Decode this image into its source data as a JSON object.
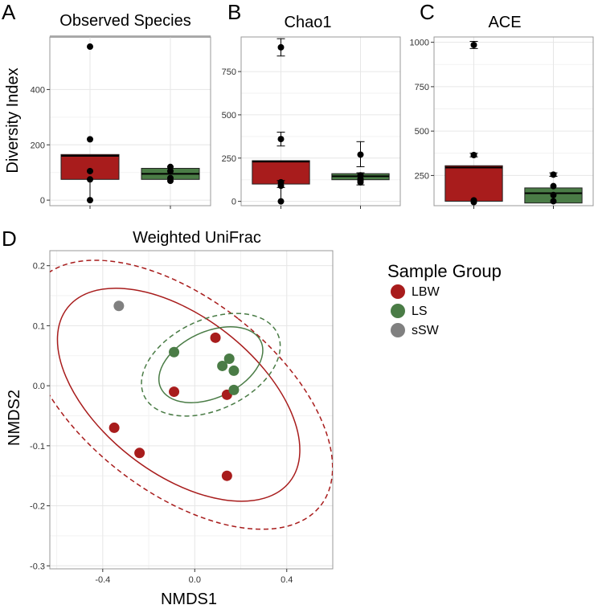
{
  "chart_data": [
    {
      "panel": "A",
      "type": "box",
      "title": "Observed Species",
      "ylabel": "Diversity Index",
      "ylim": [
        -20,
        590
      ],
      "yticks": [
        0,
        200,
        400
      ],
      "groups": [
        {
          "group": "LBW",
          "color": "#a81c1c",
          "q1": 75,
          "median": 160,
          "q3": 165,
          "whisker_low": 0,
          "whisker_high": 165,
          "points": [
            555,
            220,
            105,
            75,
            0
          ]
        },
        {
          "group": "LS",
          "color": "#4a7c46",
          "q1": 75,
          "median": 95,
          "q3": 115,
          "whisker_low": 70,
          "whisker_high": 120,
          "points": [
            120,
            105,
            80,
            70
          ]
        }
      ]
    },
    {
      "panel": "B",
      "type": "box",
      "title": "Chao1",
      "ylim": [
        -25,
        950
      ],
      "yticks": [
        0,
        250,
        500,
        750
      ],
      "groups": [
        {
          "group": "LBW",
          "color": "#a81c1c",
          "q1": 100,
          "median": 230,
          "q3": 235,
          "whisker_low": 0,
          "whisker_high": 235,
          "points": [
            890,
            360,
            110,
            90,
            0
          ],
          "error_bars": [
            {
              "center": 890,
              "low": 840,
              "high": 940
            },
            {
              "center": 360,
              "low": 320,
              "high": 400
            },
            {
              "center": 100,
              "low": 80,
              "high": 120
            }
          ]
        },
        {
          "group": "LS",
          "color": "#4a7c46",
          "q1": 125,
          "median": 145,
          "q3": 160,
          "whisker_low": 100,
          "whisker_high": 160,
          "points": [
            270,
            150,
            130,
            120,
            110
          ],
          "error_bars": [
            {
              "center": 270,
              "low": 200,
              "high": 345
            },
            {
              "center": 130,
              "low": 95,
              "high": 165
            }
          ]
        }
      ]
    },
    {
      "panel": "C",
      "type": "box",
      "title": "ACE",
      "ylim": [
        80,
        1030
      ],
      "yticks": [
        250,
        500,
        750,
        1000
      ],
      "groups": [
        {
          "group": "LBW",
          "color": "#a81c1c",
          "q1": 105,
          "median": 295,
          "q3": 305,
          "whisker_low": 100,
          "whisker_high": 305,
          "points": [
            985,
            365,
            110,
            100
          ],
          "error_bars": [
            {
              "center": 985,
              "low": 965,
              "high": 1005
            },
            {
              "center": 365,
              "low": 355,
              "high": 375
            }
          ]
        },
        {
          "group": "LS",
          "color": "#4a7c46",
          "q1": 95,
          "median": 150,
          "q3": 180,
          "whisker_low": 95,
          "whisker_high": 180,
          "points": [
            255,
            190,
            140,
            105
          ],
          "error_bars": [
            {
              "center": 255,
              "low": 245,
              "high": 265
            }
          ]
        }
      ]
    },
    {
      "panel": "D",
      "type": "scatter",
      "title": "Weighted UniFrac",
      "xlabel": "NMDS1",
      "ylabel": "NMDS2",
      "xlim": [
        -0.63,
        0.6
      ],
      "ylim": [
        -0.305,
        0.225
      ],
      "xticks": [
        -0.4,
        0.0,
        0.4
      ],
      "xtick_labels": [
        "-0.4",
        "0.0",
        "0.4"
      ],
      "yticks": [
        -0.3,
        -0.2,
        -0.1,
        0.0,
        0.1,
        0.2
      ],
      "ytick_labels": [
        "-0.3",
        "-0.2",
        "-0.1",
        "0.0",
        "0.1",
        "0.2"
      ],
      "legend_title": "Sample Group",
      "legend_position": "right",
      "series": [
        {
          "name": "LBW",
          "color": "#a81c1c",
          "points": [
            [
              0.09,
              0.08
            ],
            [
              -0.09,
              -0.01
            ],
            [
              0.14,
              -0.015
            ],
            [
              -0.35,
              -0.07
            ],
            [
              -0.24,
              -0.112
            ],
            [
              0.14,
              -0.15
            ]
          ],
          "ellipses": [
            {
              "style": "solid",
              "cx": -0.07,
              "cy": -0.015,
              "rx": 0.34,
              "ry": 0.235,
              "angle_deg": -52
            },
            {
              "style": "dashed",
              "cx": -0.07,
              "cy": -0.015,
              "rx": 0.42,
              "ry": 0.3,
              "angle_deg": -52
            }
          ]
        },
        {
          "name": "LS",
          "color": "#4a7c46",
          "points": [
            [
              -0.09,
              0.056
            ],
            [
              0.15,
              0.045
            ],
            [
              0.12,
              0.033
            ],
            [
              0.17,
              0.025
            ],
            [
              0.17,
              -0.007
            ]
          ],
          "ellipses": [
            {
              "style": "solid",
              "cx": 0.07,
              "cy": 0.035,
              "rx": 0.24,
              "ry": 0.055,
              "angle_deg": -25
            },
            {
              "style": "dashed",
              "cx": 0.07,
              "cy": 0.035,
              "rx": 0.32,
              "ry": 0.075,
              "angle_deg": -25
            }
          ]
        },
        {
          "name": "sSW",
          "color": "#808080",
          "points": [
            [
              -0.33,
              0.133
            ]
          ]
        }
      ]
    }
  ]
}
